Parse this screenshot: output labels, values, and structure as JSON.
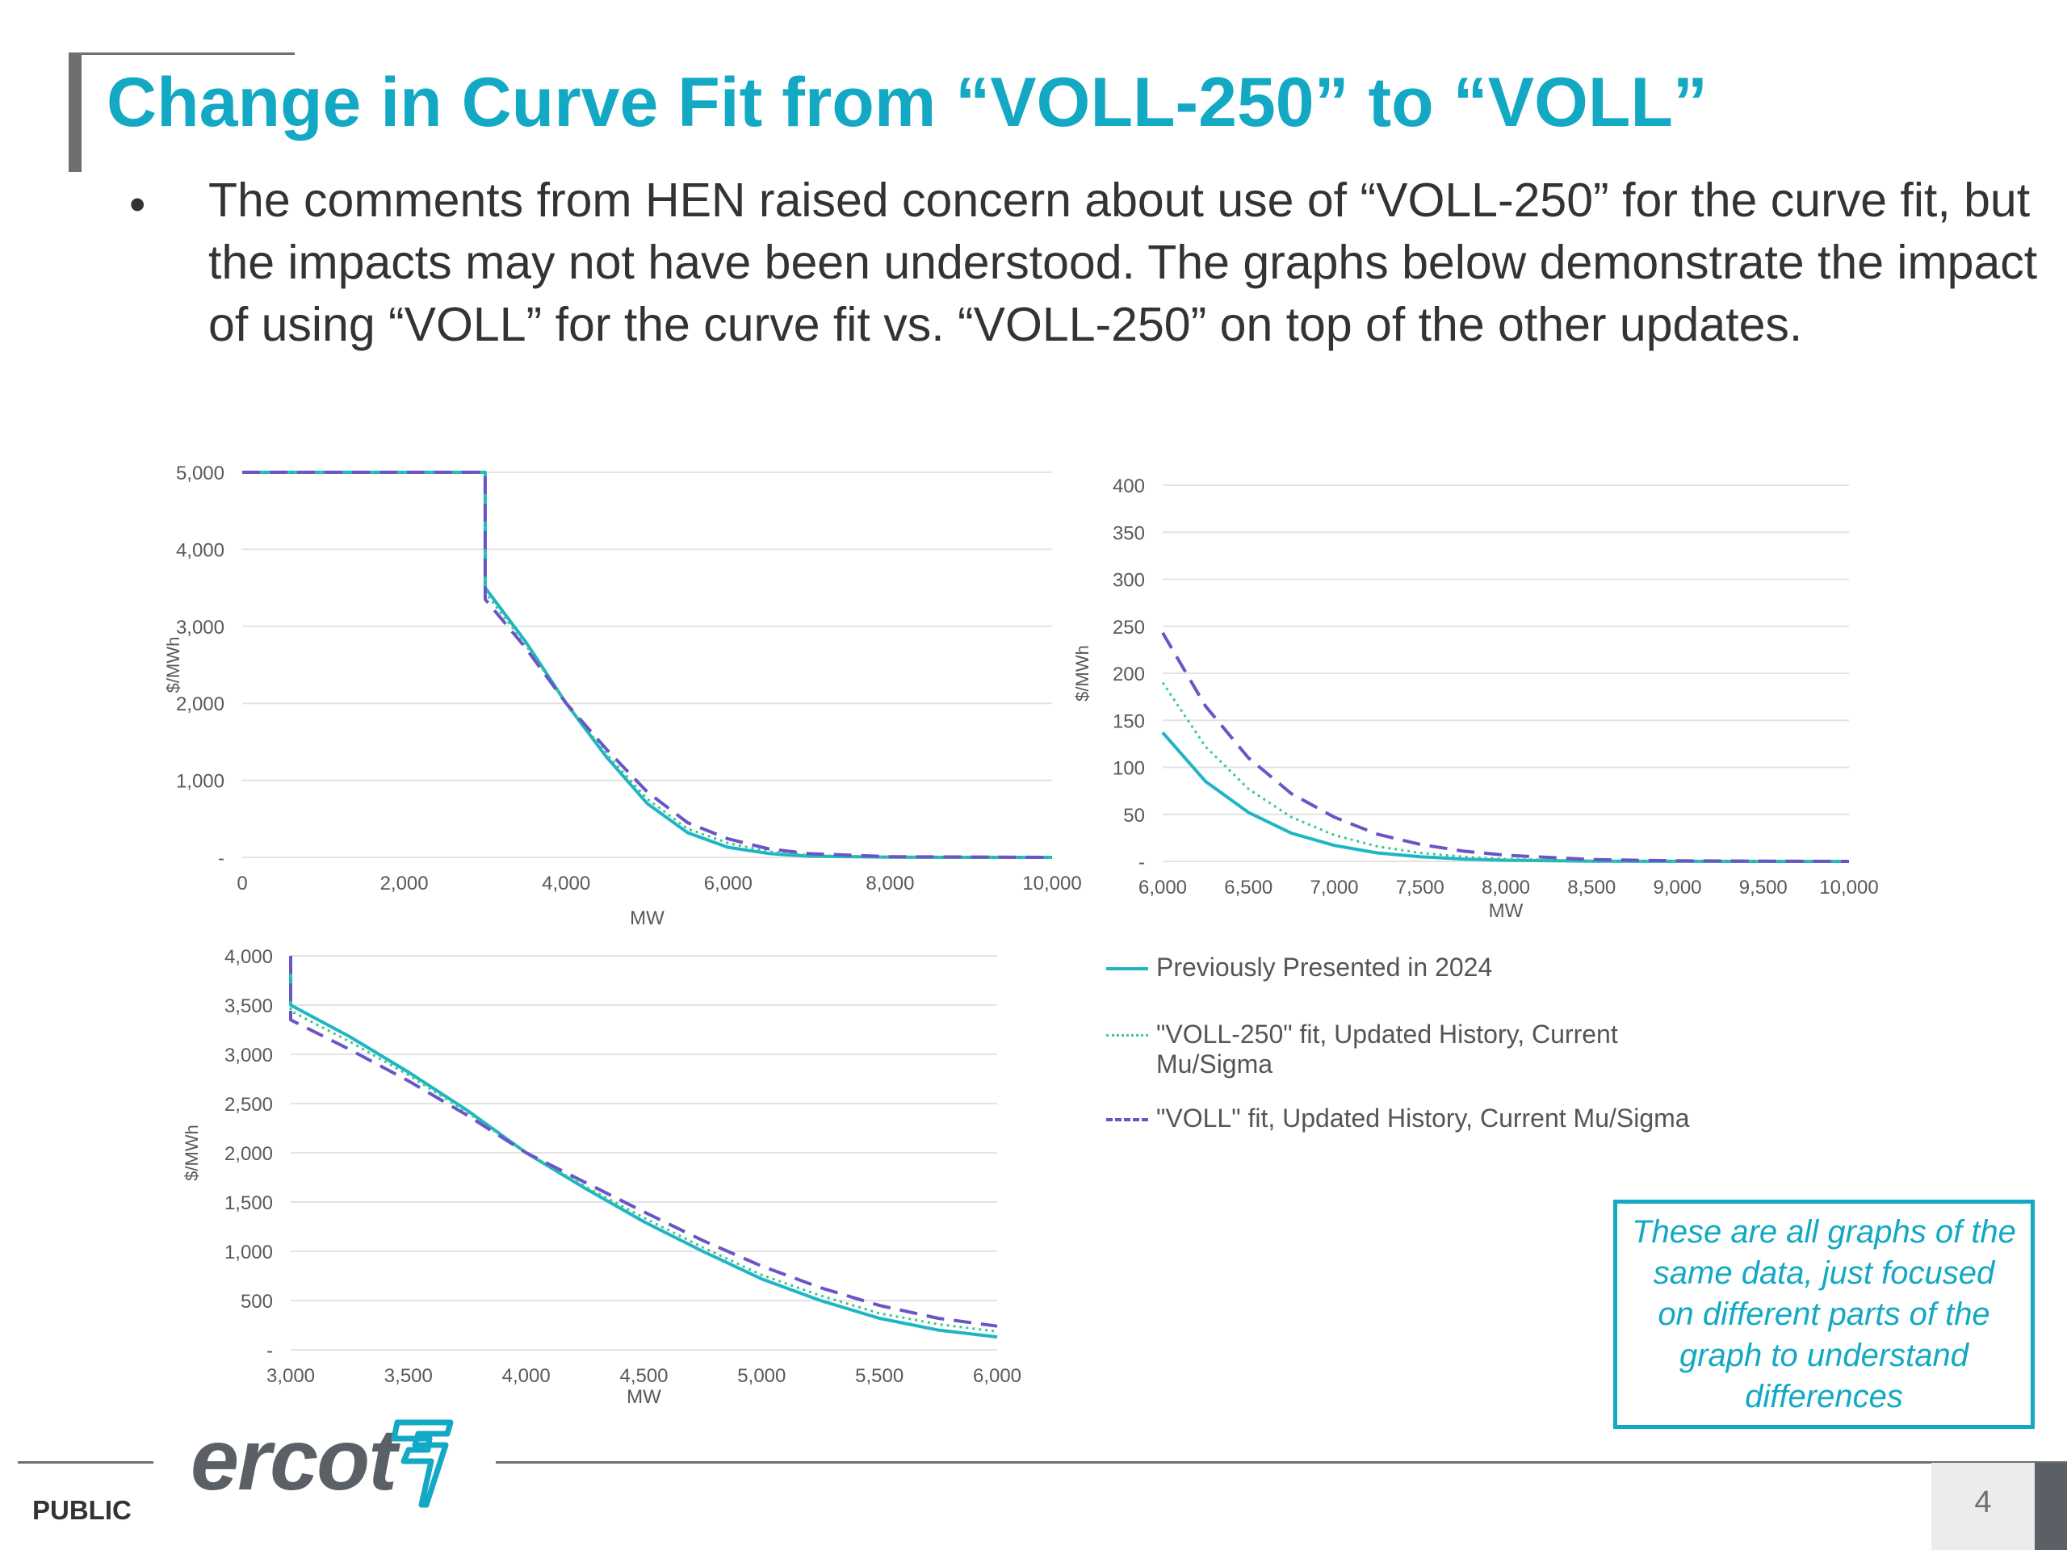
{
  "slide": {
    "title": "Change in Curve Fit from “VOLL-250” to “VOLL”",
    "bullet": "The comments from HEN raised concern about use of “VOLL-250” for the curve fit, but the impacts may not have been understood.  The graphs below demonstrate the impact of using “VOLL” for the curve fit vs. “VOLL-250” on top of the other updates.",
    "bullet_marker": "•",
    "callout": "These are all graphs of the same data, just focused on different parts of the graph to understand differences",
    "footer": {
      "classification": "PUBLIC",
      "page_number": "4",
      "logo_text": "ercot"
    }
  },
  "legend": [
    {
      "label": "Previously Presented in 2024",
      "color": "#1fb5c4",
      "style": "solid"
    },
    {
      "label": "\"VOLL-250\" fit, Updated History, Current Mu/Sigma",
      "color": "#3cc88a",
      "style": "dotted"
    },
    {
      "label": "\"VOLL\" fit, Updated History, Current Mu/Sigma",
      "color": "#6a55c7",
      "style": "dashed"
    }
  ],
  "colors": {
    "accent": "#13a8c3",
    "series_prev": "#1fb5c4",
    "series_voll250": "#3cc88a",
    "series_voll": "#6a55c7",
    "grid": "#e3e3e3"
  },
  "chart_data": [
    {
      "type": "line",
      "xlabel": "MW",
      "ylabel": "$/MWh",
      "xlim": [
        0,
        10000
      ],
      "ylim": [
        0,
        5000
      ],
      "x_ticks": [
        0,
        2000,
        4000,
        6000,
        8000,
        10000
      ],
      "x_tick_labels": [
        "0",
        "2,000",
        "4,000",
        "6,000",
        "8,000",
        "10,000"
      ],
      "y_ticks": [
        0,
        1000,
        2000,
        3000,
        4000,
        5000
      ],
      "y_tick_labels": [
        "-",
        "1,000",
        "2,000",
        "3,000",
        "4,000",
        "5,000"
      ],
      "grid": true,
      "series": [
        {
          "name": "Previously Presented in 2024",
          "x": [
            0,
            3000,
            3000,
            3500,
            4000,
            4500,
            5000,
            5500,
            6000,
            6500,
            7000,
            8000,
            10000
          ],
          "y": [
            5000,
            5000,
            3500,
            2800,
            2000,
            1300,
            700,
            320,
            130,
            50,
            15,
            2,
            0
          ]
        },
        {
          "name": "\"VOLL-250\" fit, Updated History, Current Mu/Sigma",
          "x": [
            0,
            3000,
            3000,
            3500,
            4000,
            4500,
            5000,
            5500,
            6000,
            6500,
            7000,
            8000,
            10000
          ],
          "y": [
            5000,
            5000,
            3440,
            2760,
            2000,
            1340,
            760,
            370,
            185,
            75,
            28,
            4,
            0
          ]
        },
        {
          "name": "\"VOLL\" fit, Updated History, Current Mu/Sigma",
          "x": [
            0,
            3000,
            3000,
            3500,
            4000,
            4500,
            5000,
            5500,
            6000,
            6500,
            7000,
            8000,
            10000
          ],
          "y": [
            5000,
            5000,
            3350,
            2720,
            2000,
            1400,
            850,
            450,
            240,
            110,
            48,
            8,
            0
          ]
        }
      ]
    },
    {
      "type": "line",
      "xlabel": "MW",
      "ylabel": "$/MWh",
      "xlim": [
        6000,
        10000
      ],
      "ylim": [
        0,
        400
      ],
      "x_ticks": [
        6000,
        6500,
        7000,
        7500,
        8000,
        8500,
        9000,
        9500,
        10000
      ],
      "x_tick_labels": [
        "6,000",
        "6,500",
        "7,000",
        "7,500",
        "8,000",
        "8,500",
        "9,000",
        "9,500",
        "10,000"
      ],
      "y_ticks": [
        0,
        50,
        100,
        150,
        200,
        250,
        300,
        350,
        400
      ],
      "y_tick_labels": [
        "-",
        "50",
        "100",
        "150",
        "200",
        "250",
        "300",
        "350",
        "400"
      ],
      "grid": true,
      "series": [
        {
          "name": "Previously Presented in 2024",
          "x": [
            6000,
            6250,
            6500,
            6750,
            7000,
            7250,
            7500,
            7750,
            8000,
            8500,
            9000,
            10000
          ],
          "y": [
            137,
            85,
            52,
            30,
            17,
            9,
            5,
            2.5,
            1.2,
            0.3,
            0.1,
            0
          ]
        },
        {
          "name": "\"VOLL-250\" fit, Updated History, Current Mu/Sigma",
          "x": [
            6000,
            6250,
            6500,
            6750,
            7000,
            7250,
            7500,
            7750,
            8000,
            8500,
            9000,
            10000
          ],
          "y": [
            190,
            122,
            77,
            47,
            28,
            16,
            9,
            5,
            2.6,
            0.7,
            0.2,
            0
          ]
        },
        {
          "name": "\"VOLL\" fit, Updated History, Current Mu/Sigma",
          "x": [
            6000,
            6250,
            6500,
            6750,
            7000,
            7250,
            7500,
            7750,
            8000,
            8500,
            9000,
            10000
          ],
          "y": [
            243,
            165,
            110,
            72,
            47,
            29,
            18,
            11,
            6.5,
            2,
            0.6,
            0
          ]
        }
      ]
    },
    {
      "type": "line",
      "xlabel": "MW",
      "ylabel": "$/MWh",
      "xlim": [
        3000,
        6000
      ],
      "ylim": [
        0,
        4000
      ],
      "x_ticks": [
        3000,
        3500,
        4000,
        4500,
        5000,
        5500,
        6000
      ],
      "x_tick_labels": [
        "3,000",
        "3,500",
        "4,000",
        "4,500",
        "5,000",
        "5,500",
        "6,000"
      ],
      "y_ticks": [
        0,
        500,
        1000,
        1500,
        2000,
        2500,
        3000,
        3500,
        4000
      ],
      "y_tick_labels": [
        "-",
        "500",
        "1,000",
        "1,500",
        "2,000",
        "2,500",
        "3,000",
        "3,500",
        "4,000"
      ],
      "grid": true,
      "series": [
        {
          "name": "Previously Presented in 2024",
          "x": [
            3000,
            3000,
            3250,
            3500,
            3750,
            4000,
            4250,
            4500,
            4750,
            5000,
            5250,
            5500,
            5750,
            6000
          ],
          "y": [
            4000,
            3500,
            3180,
            2820,
            2430,
            2000,
            1640,
            1300,
            1000,
            720,
            500,
            320,
            200,
            130
          ]
        },
        {
          "name": "\"VOLL-250\" fit, Updated History, Current Mu/Sigma",
          "x": [
            3000,
            3000,
            3250,
            3500,
            3750,
            4000,
            4250,
            4500,
            4750,
            5000,
            5250,
            5500,
            5750,
            6000
          ],
          "y": [
            4000,
            3440,
            3130,
            2790,
            2410,
            2000,
            1660,
            1340,
            1040,
            760,
            550,
            370,
            260,
            185
          ]
        },
        {
          "name": "\"VOLL\" fit, Updated History, Current Mu/Sigma",
          "x": [
            3000,
            3000,
            3250,
            3500,
            3750,
            4000,
            4250,
            4500,
            4750,
            5000,
            5250,
            5500,
            5750,
            6000
          ],
          "y": [
            4000,
            3350,
            3050,
            2730,
            2380,
            2000,
            1700,
            1400,
            1110,
            850,
            630,
            450,
            320,
            240
          ]
        }
      ]
    }
  ]
}
